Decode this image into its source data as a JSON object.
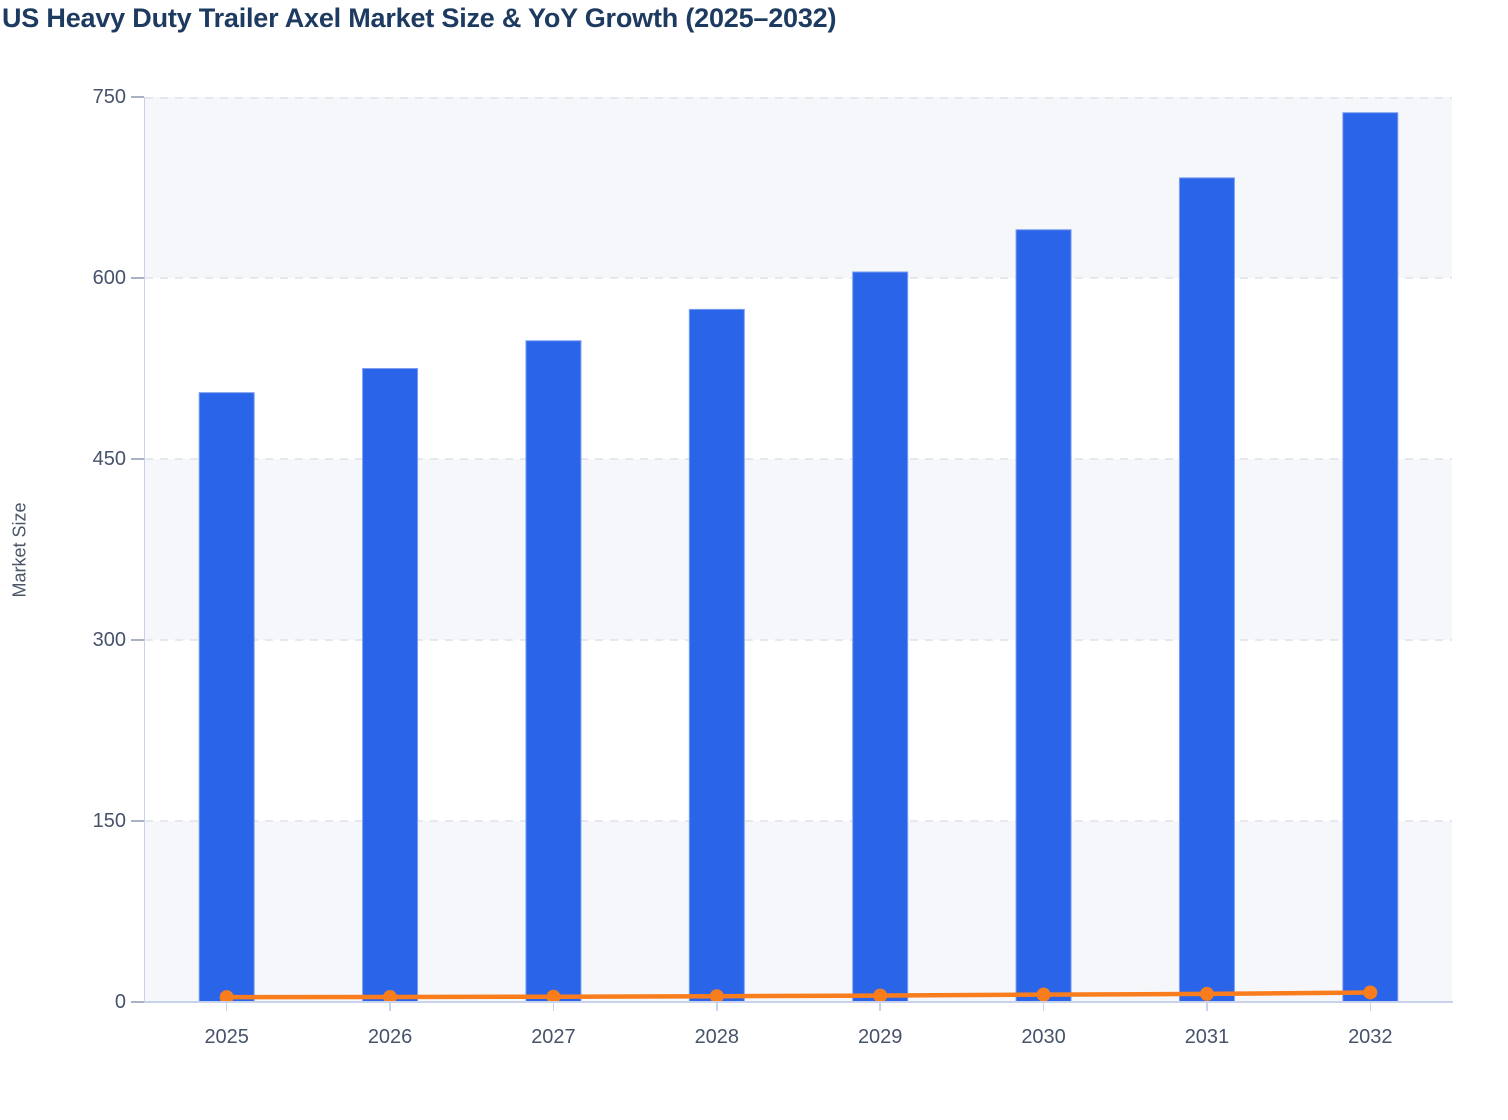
{
  "chart_data": {
    "type": "combo",
    "title": "US Heavy Duty Trailer Axel Market Size & YoY Growth (2025–2032)",
    "ylabel": "Market Size",
    "xlabel": "",
    "categories": [
      "2025",
      "2026",
      "2027",
      "2028",
      "2029",
      "2030",
      "2031",
      "2032"
    ],
    "series": [
      {
        "name": "Market Size",
        "type": "bar",
        "color": "#2a64e8",
        "edge_color": "#7e9ff0",
        "values": [
          505,
          525,
          548,
          574,
          605,
          640,
          683,
          737
        ]
      },
      {
        "name": "YoY Growth",
        "type": "line",
        "color": "#f97d1c",
        "values": [
          4.0,
          4.1,
          4.4,
          4.8,
          5.3,
          6.1,
          6.7,
          7.9
        ]
      }
    ],
    "ylim": [
      0,
      750
    ],
    "y_ticks": [
      0,
      150,
      300,
      450,
      600,
      750
    ],
    "legend": "none",
    "grid": "horizontal-dashed",
    "grid_color": "#e0e2e7",
    "band_colors": [
      "#f6f7fa",
      "#ffffff"
    ],
    "axis_color": "#c9d2ec",
    "tick_label_color": "#47536b",
    "title_color": "#1d3a60"
  }
}
